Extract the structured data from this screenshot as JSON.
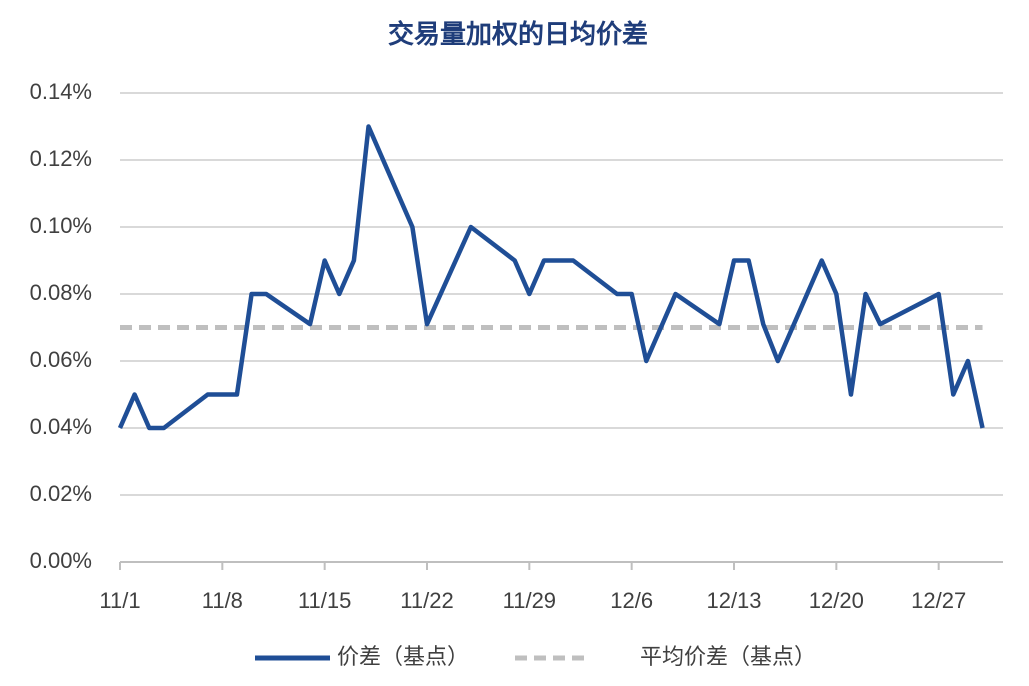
{
  "chart_data": {
    "type": "line",
    "title": "交易量加权的日均价差",
    "x": [
      0,
      1,
      2,
      3,
      6,
      8,
      9,
      10,
      13,
      14,
      15,
      16,
      17,
      20,
      21,
      24,
      27,
      28,
      29,
      31,
      34,
      35,
      36,
      38,
      41,
      42,
      43,
      44,
      45,
      48,
      49,
      50,
      51,
      52,
      56,
      57,
      58,
      59
    ],
    "xlim": [
      0,
      60.4
    ],
    "xticks": [
      {
        "value": 0,
        "label": "11/1"
      },
      {
        "value": 7,
        "label": "11/8"
      },
      {
        "value": 14,
        "label": "11/15"
      },
      {
        "value": 21,
        "label": "11/22"
      },
      {
        "value": 28,
        "label": "11/29"
      },
      {
        "value": 35,
        "label": "12/6"
      },
      {
        "value": 42,
        "label": "12/13"
      },
      {
        "value": 49,
        "label": "12/20"
      },
      {
        "value": 56,
        "label": "12/27"
      }
    ],
    "series": [
      {
        "name": "价差（基点）",
        "color": "#1f4e96",
        "style": "solid",
        "values": [
          0.04,
          0.05,
          0.04,
          0.04,
          0.05,
          0.05,
          0.08,
          0.08,
          0.071,
          0.09,
          0.08,
          0.09,
          0.13,
          0.1,
          0.071,
          0.1,
          0.09,
          0.08,
          0.09,
          0.09,
          0.08,
          0.08,
          0.06,
          0.08,
          0.071,
          0.09,
          0.09,
          0.071,
          0.06,
          0.09,
          0.08,
          0.05,
          0.08,
          0.071,
          0.08,
          0.05,
          0.06,
          0.04
        ]
      },
      {
        "name": "平均价差（基点）",
        "color": "#bfbfbf",
        "style": "dashed",
        "values": [
          0.07,
          0.07,
          0.07,
          0.07,
          0.07,
          0.07,
          0.07,
          0.07,
          0.07,
          0.07,
          0.07,
          0.07,
          0.07,
          0.07,
          0.07,
          0.07,
          0.07,
          0.07,
          0.07,
          0.07,
          0.07,
          0.07,
          0.07,
          0.07,
          0.07,
          0.07,
          0.07,
          0.07,
          0.07,
          0.07,
          0.07,
          0.07,
          0.07,
          0.07,
          0.07,
          0.07,
          0.07,
          0.07
        ]
      }
    ],
    "ylim": [
      0,
      0.14
    ],
    "yticks": [
      {
        "value": 0,
        "label": "0.00%"
      },
      {
        "value": 0.02,
        "label": "0.02%"
      },
      {
        "value": 0.04,
        "label": "0.04%"
      },
      {
        "value": 0.06,
        "label": "0.06%"
      },
      {
        "value": 0.08,
        "label": "0.08%"
      },
      {
        "value": 0.1,
        "label": "0.10%"
      },
      {
        "value": 0.12,
        "label": "0.12%"
      },
      {
        "value": 0.14,
        "label": "0.14%"
      }
    ],
    "grid": true,
    "legend": "bottom"
  }
}
